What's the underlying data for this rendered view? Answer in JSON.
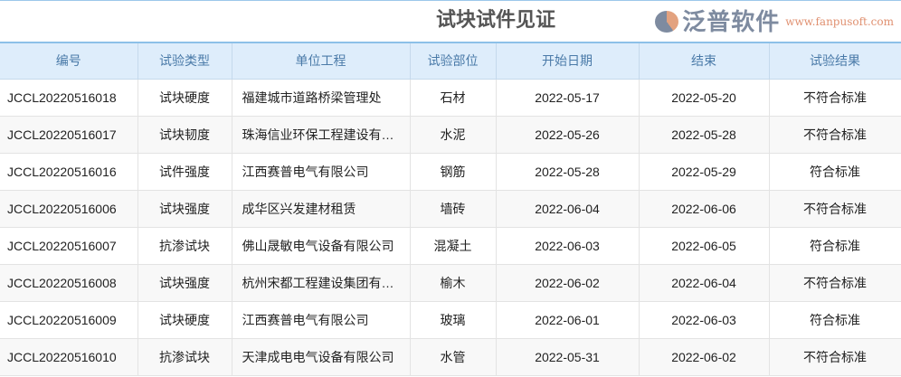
{
  "title": "试块试件见证",
  "columns": [
    "编号",
    "试验类型",
    "单位工程",
    "试验部位",
    "开始日期",
    "结束",
    "试验结果"
  ],
  "rows": [
    [
      "JCCL20220516018",
      "试块硬度",
      "福建城市道路桥梁管理处",
      "石材",
      "2022-05-17",
      "2022-05-20",
      "不符合标准"
    ],
    [
      "JCCL20220516017",
      "试块韧度",
      "珠海信业环保工程建设有…",
      "水泥",
      "2022-05-26",
      "2022-05-28",
      "不符合标准"
    ],
    [
      "JCCL20220516016",
      "试件强度",
      "江西赛普电气有限公司",
      "钢筋",
      "2022-05-28",
      "2022-05-29",
      "符合标准"
    ],
    [
      "JCCL20220516006",
      "试块强度",
      "成华区兴发建材租赁",
      "墙砖",
      "2022-06-04",
      "2022-06-06",
      "不符合标准"
    ],
    [
      "JCCL20220516007",
      "抗渗试块",
      "佛山晟敏电气设备有限公司",
      "混凝土",
      "2022-06-03",
      "2022-06-05",
      "符合标准"
    ],
    [
      "JCCL20220516008",
      "试块强度",
      "杭州宋都工程建设集团有…",
      "榆木",
      "2022-06-02",
      "2022-06-04",
      "不符合标准"
    ],
    [
      "JCCL20220516009",
      "试块硬度",
      "江西赛普电气有限公司",
      "玻璃",
      "2022-06-01",
      "2022-06-03",
      "符合标准"
    ],
    [
      "JCCL20220516010",
      "抗渗试块",
      "天津成电电气设备有限公司",
      "水管",
      "2022-05-31",
      "2022-06-02",
      "不符合标准"
    ]
  ],
  "watermark": {
    "text": "泛普软件",
    "url": "www.fanpusoft.com"
  }
}
